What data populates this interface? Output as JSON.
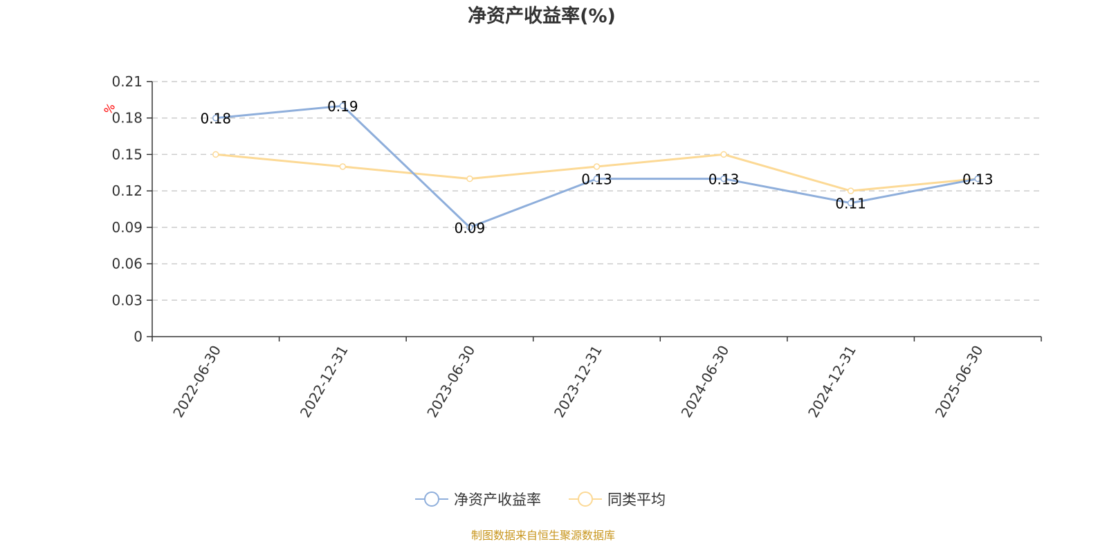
{
  "chart_data": {
    "type": "line",
    "title": "净资产收益率(%)",
    "ylabel": "%",
    "xlabel": "",
    "categories": [
      "2022-06-30",
      "2022-12-31",
      "2023-06-30",
      "2023-12-31",
      "2024-06-30",
      "2024-12-31",
      "2025-06-30"
    ],
    "ylim": [
      0,
      0.21
    ],
    "yticks": [
      "0",
      "0.03",
      "0.06",
      "0.09",
      "0.12",
      "0.15",
      "0.18",
      "0.21"
    ],
    "grid": "horizontal dashed",
    "legend_position": "bottom",
    "series": [
      {
        "name": "净资产收益率",
        "color": "#8eaedb",
        "values": [
          0.18,
          0.19,
          0.09,
          0.13,
          0.13,
          0.11,
          0.13
        ],
        "labels": [
          "0.18",
          "0.19",
          "0.09",
          "0.13",
          "0.13",
          "0.11",
          "0.13"
        ]
      },
      {
        "name": "同类平均",
        "color": "#fcd995",
        "values": [
          0.15,
          0.14,
          0.13,
          0.14,
          0.15,
          0.12,
          0.13
        ]
      }
    ],
    "source": "制图数据来自恒生聚源数据库",
    "colors": {
      "ylabel": "#ff0000",
      "source": "#c8961e",
      "axis": "#333333",
      "grid": "#cccccc"
    }
  }
}
